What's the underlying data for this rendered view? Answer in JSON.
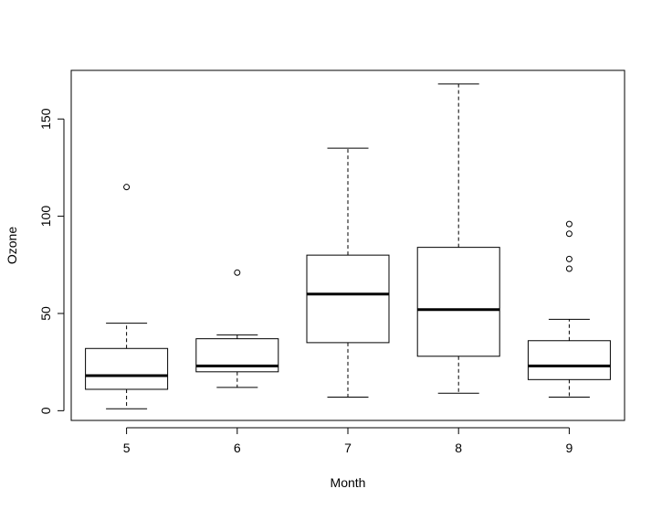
{
  "chart_data": {
    "type": "box",
    "title": "",
    "xlabel": "Month",
    "ylabel": "Ozone",
    "categories": [
      "5",
      "6",
      "7",
      "8",
      "9"
    ],
    "ylim": [
      -5,
      175
    ],
    "yticks": [
      0,
      50,
      100,
      150
    ],
    "grid": false,
    "boxes": [
      {
        "category": "5",
        "whisker_low": 1,
        "q1": 11,
        "median": 18,
        "q3": 32,
        "whisker_high": 45,
        "outliers": [
          115
        ]
      },
      {
        "category": "6",
        "whisker_low": 12,
        "q1": 20,
        "median": 23,
        "q3": 37,
        "whisker_high": 39,
        "outliers": [
          71
        ]
      },
      {
        "category": "7",
        "whisker_low": 7,
        "q1": 35,
        "median": 60,
        "q3": 80,
        "whisker_high": 135,
        "outliers": []
      },
      {
        "category": "8",
        "whisker_low": 9,
        "q1": 28,
        "median": 52,
        "q3": 84,
        "whisker_high": 168,
        "outliers": []
      },
      {
        "category": "9",
        "whisker_low": 7,
        "q1": 16,
        "median": 23,
        "q3": 36,
        "whisker_high": 47,
        "outliers": [
          73,
          78,
          91,
          96
        ]
      }
    ]
  }
}
